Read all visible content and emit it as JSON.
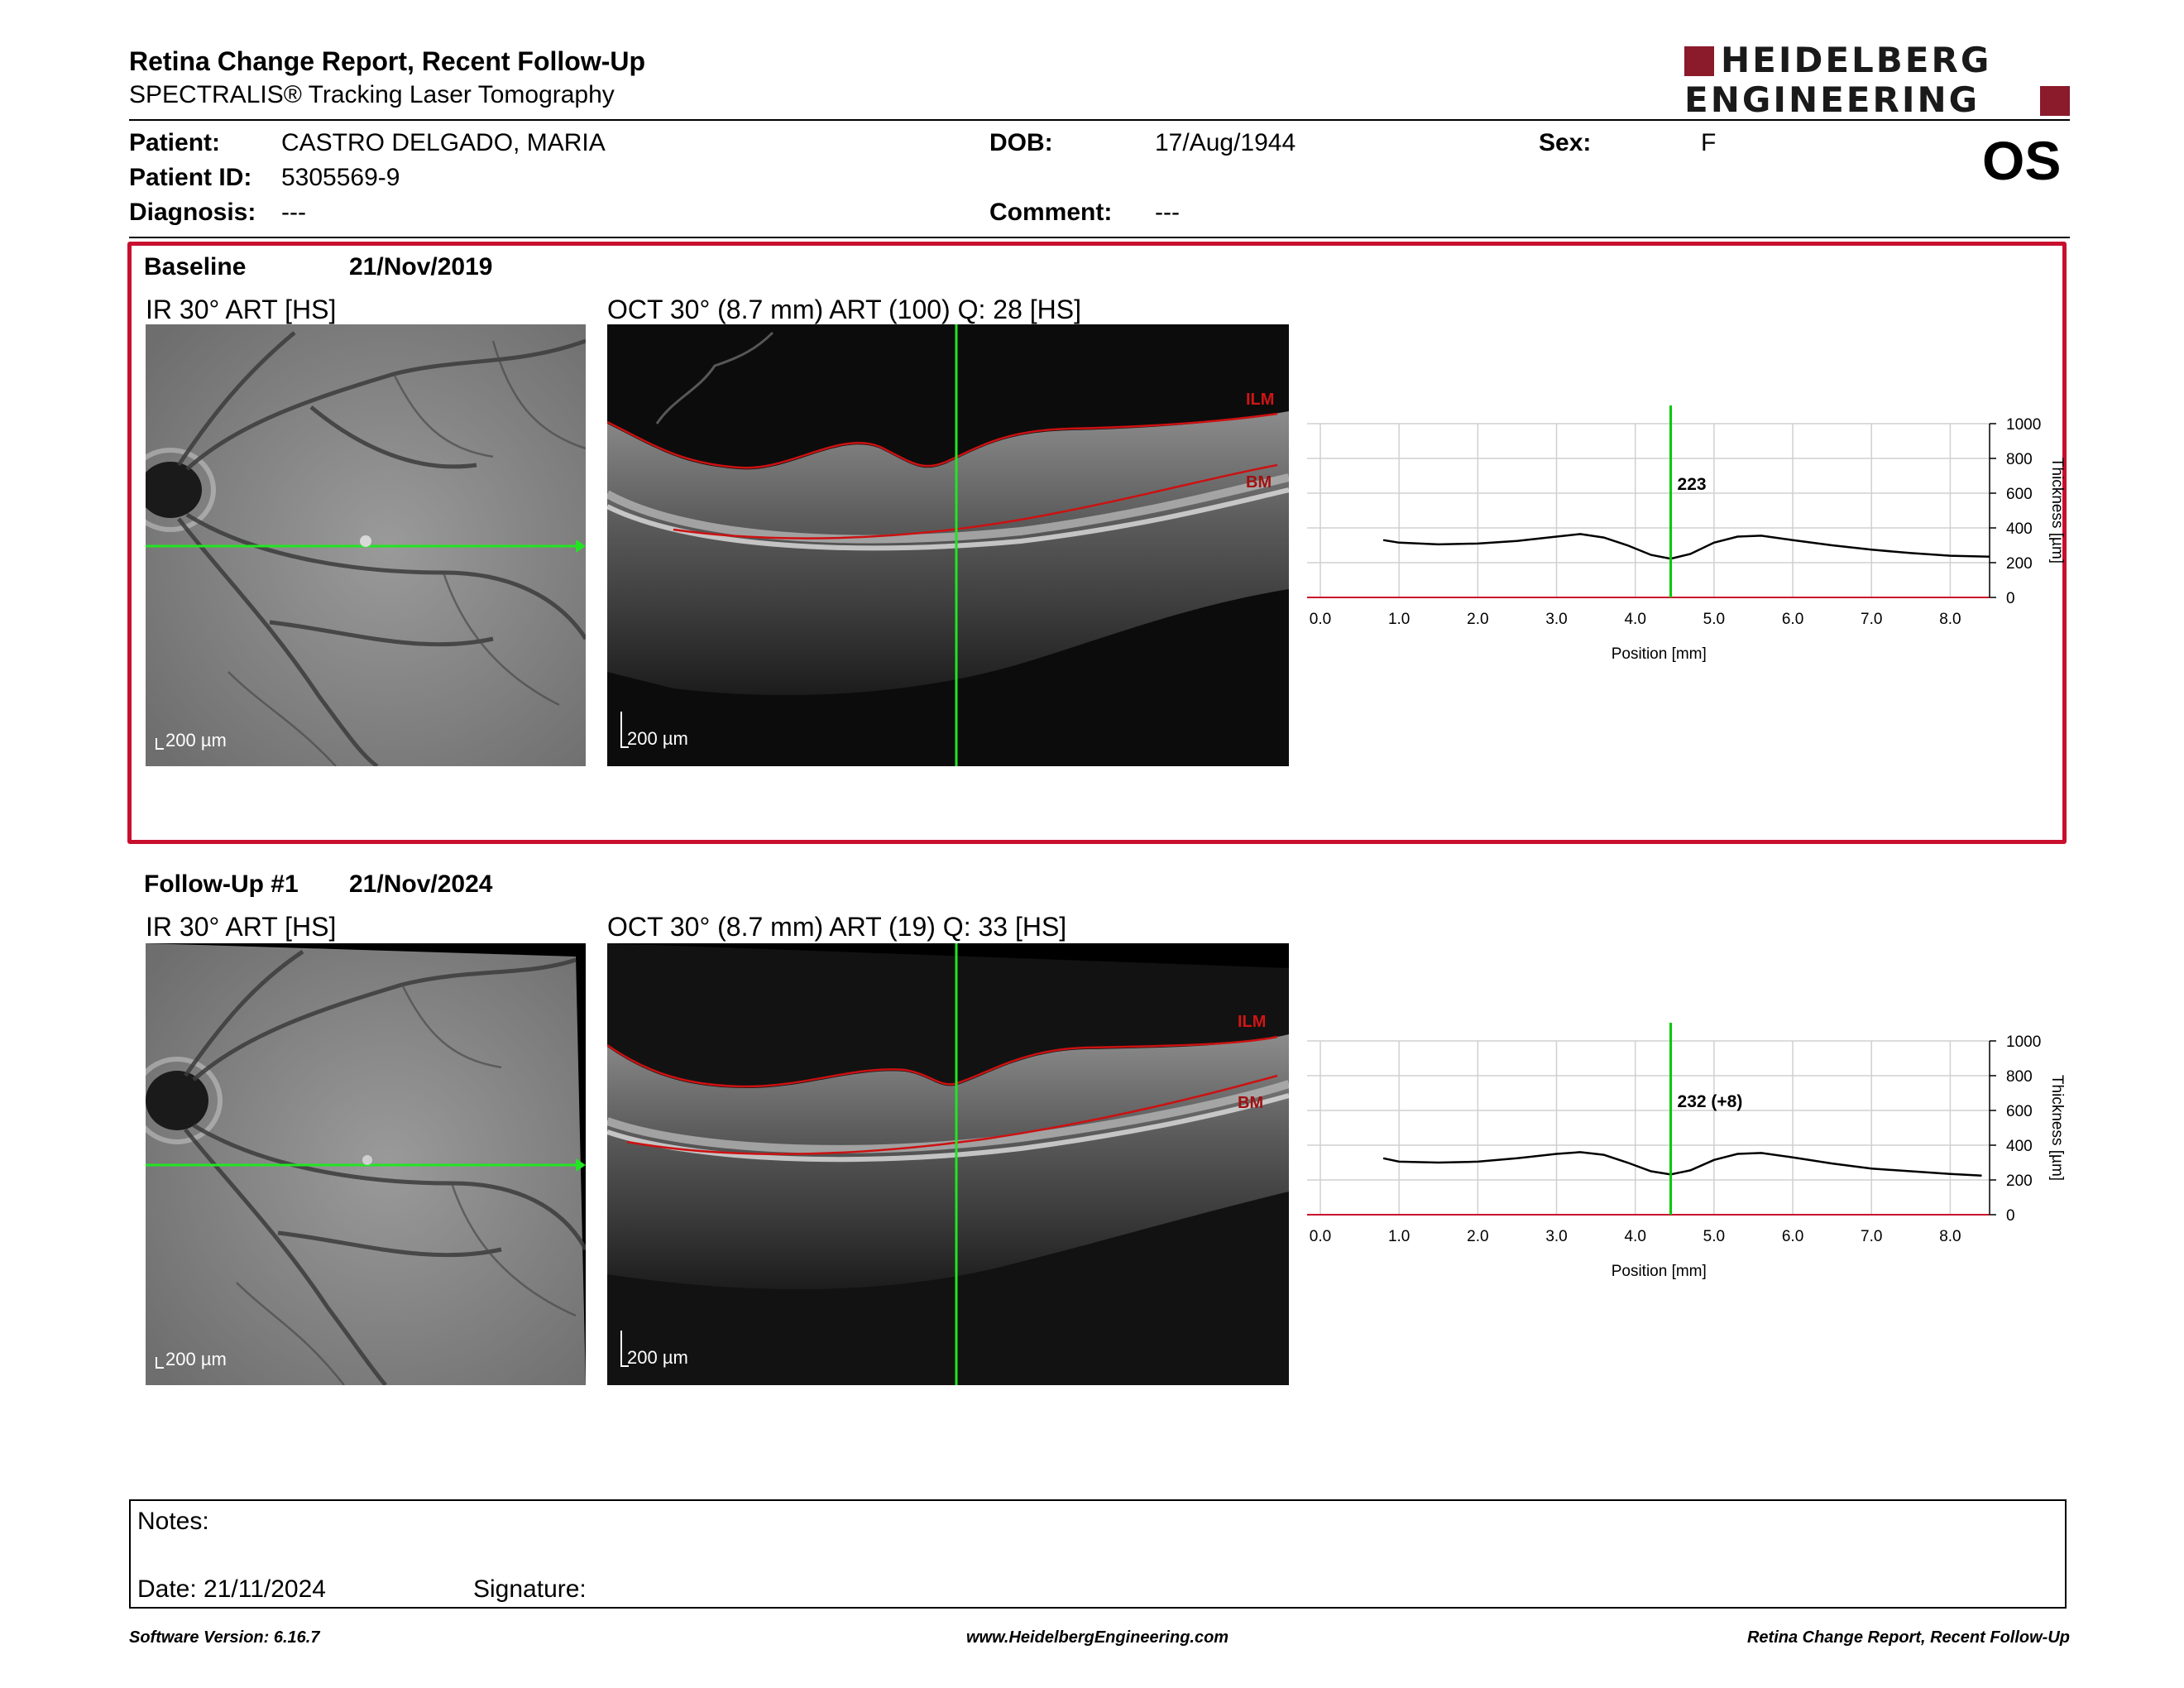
{
  "header": {
    "title": "Retina Change Report, Recent Follow-Up",
    "subtitle": "SPECTRALIS® Tracking Laser Tomography",
    "logo_line1": "HEIDELBERG",
    "logo_line2": "ENGINEERING",
    "eye": "OS"
  },
  "patient": {
    "patient_label": "Patient:",
    "patient_value": "CASTRO DELGADO, MARIA",
    "id_label": "Patient ID:",
    "id_value": "5305569-9",
    "diag_label": "Diagnosis:",
    "diag_value": "---",
    "dob_label": "DOB:",
    "dob_value": "17/Aug/1944",
    "comment_label": "Comment:",
    "comment_value": "---",
    "sex_label": "Sex:",
    "sex_value": "F"
  },
  "baseline": {
    "name": "Baseline",
    "date": "21/Nov/2019",
    "ir_label": "IR 30° ART [HS]",
    "oct_label": "OCT 30° (8.7 mm) ART (100) Q: 28 [HS]",
    "ir_scale": "200 µm",
    "oct_scale": "200 µm",
    "ilm": "ILM",
    "bm": "BM"
  },
  "followup": {
    "name": "Follow-Up #1",
    "date": "21/Nov/2024",
    "ir_label": "IR 30° ART [HS]",
    "oct_label": "OCT 30° (8.7 mm) ART (19) Q: 33 [HS]",
    "ir_scale": "200 µm",
    "oct_scale": "200 µm",
    "ilm": "ILM",
    "bm": "BM"
  },
  "chart_data": [
    {
      "type": "line",
      "x": [
        0.8,
        1.0,
        1.5,
        2.0,
        2.5,
        3.0,
        3.3,
        3.6,
        3.9,
        4.2,
        4.45,
        4.7,
        5.0,
        5.3,
        5.6,
        6.0,
        6.5,
        7.0,
        7.5,
        8.0,
        8.5
      ],
      "series": [
        {
          "values": [
            330,
            315,
            305,
            310,
            325,
            350,
            365,
            345,
            300,
            245,
            223,
            250,
            315,
            350,
            355,
            330,
            300,
            275,
            255,
            240,
            235
          ]
        }
      ],
      "xlabel": "Position [mm]",
      "ylabel": "Thickness [µm]",
      "xlim": [
        0,
        8.5
      ],
      "ylim": [
        0,
        1000
      ],
      "xticks": [
        "0.0",
        "1.0",
        "2.0",
        "3.0",
        "4.0",
        "5.0",
        "6.0",
        "7.0",
        "8.0"
      ],
      "yticks": [
        "0",
        "200",
        "400",
        "600",
        "800",
        "1000"
      ],
      "cursor_x": 4.45,
      "cursor_label": "223",
      "grid": true,
      "colors": {
        "line": "#000000",
        "cursor": "#00c800",
        "baseline": "#c8102e"
      }
    },
    {
      "type": "line",
      "x": [
        0.8,
        1.0,
        1.5,
        2.0,
        2.5,
        3.0,
        3.3,
        3.6,
        3.9,
        4.2,
        4.45,
        4.7,
        5.0,
        5.3,
        5.6,
        6.0,
        6.5,
        7.0,
        7.5,
        8.0,
        8.4
      ],
      "series": [
        {
          "values": [
            325,
            305,
            300,
            305,
            325,
            350,
            360,
            345,
            300,
            250,
            232,
            255,
            315,
            350,
            355,
            330,
            295,
            265,
            250,
            235,
            225
          ]
        }
      ],
      "xlabel": "Position [mm]",
      "ylabel": "Thickness [µm]",
      "xlim": [
        0,
        8.5
      ],
      "ylim": [
        0,
        1000
      ],
      "xticks": [
        "0.0",
        "1.0",
        "2.0",
        "3.0",
        "4.0",
        "5.0",
        "6.0",
        "7.0",
        "8.0"
      ],
      "yticks": [
        "0",
        "200",
        "400",
        "600",
        "800",
        "1000"
      ],
      "cursor_x": 4.45,
      "cursor_label": "232 (+8)",
      "grid": true,
      "colors": {
        "line": "#000000",
        "cursor": "#00c800",
        "baseline": "#c8102e"
      }
    }
  ],
  "notes": {
    "notes_label": "Notes:",
    "date_label": "Date: 21/11/2024",
    "signature_label": "Signature:"
  },
  "footer": {
    "version": "Software Version: 6.16.7",
    "website": "www.HeidelbergEngineering.com",
    "report": "Retina Change Report, Recent Follow-Up"
  }
}
